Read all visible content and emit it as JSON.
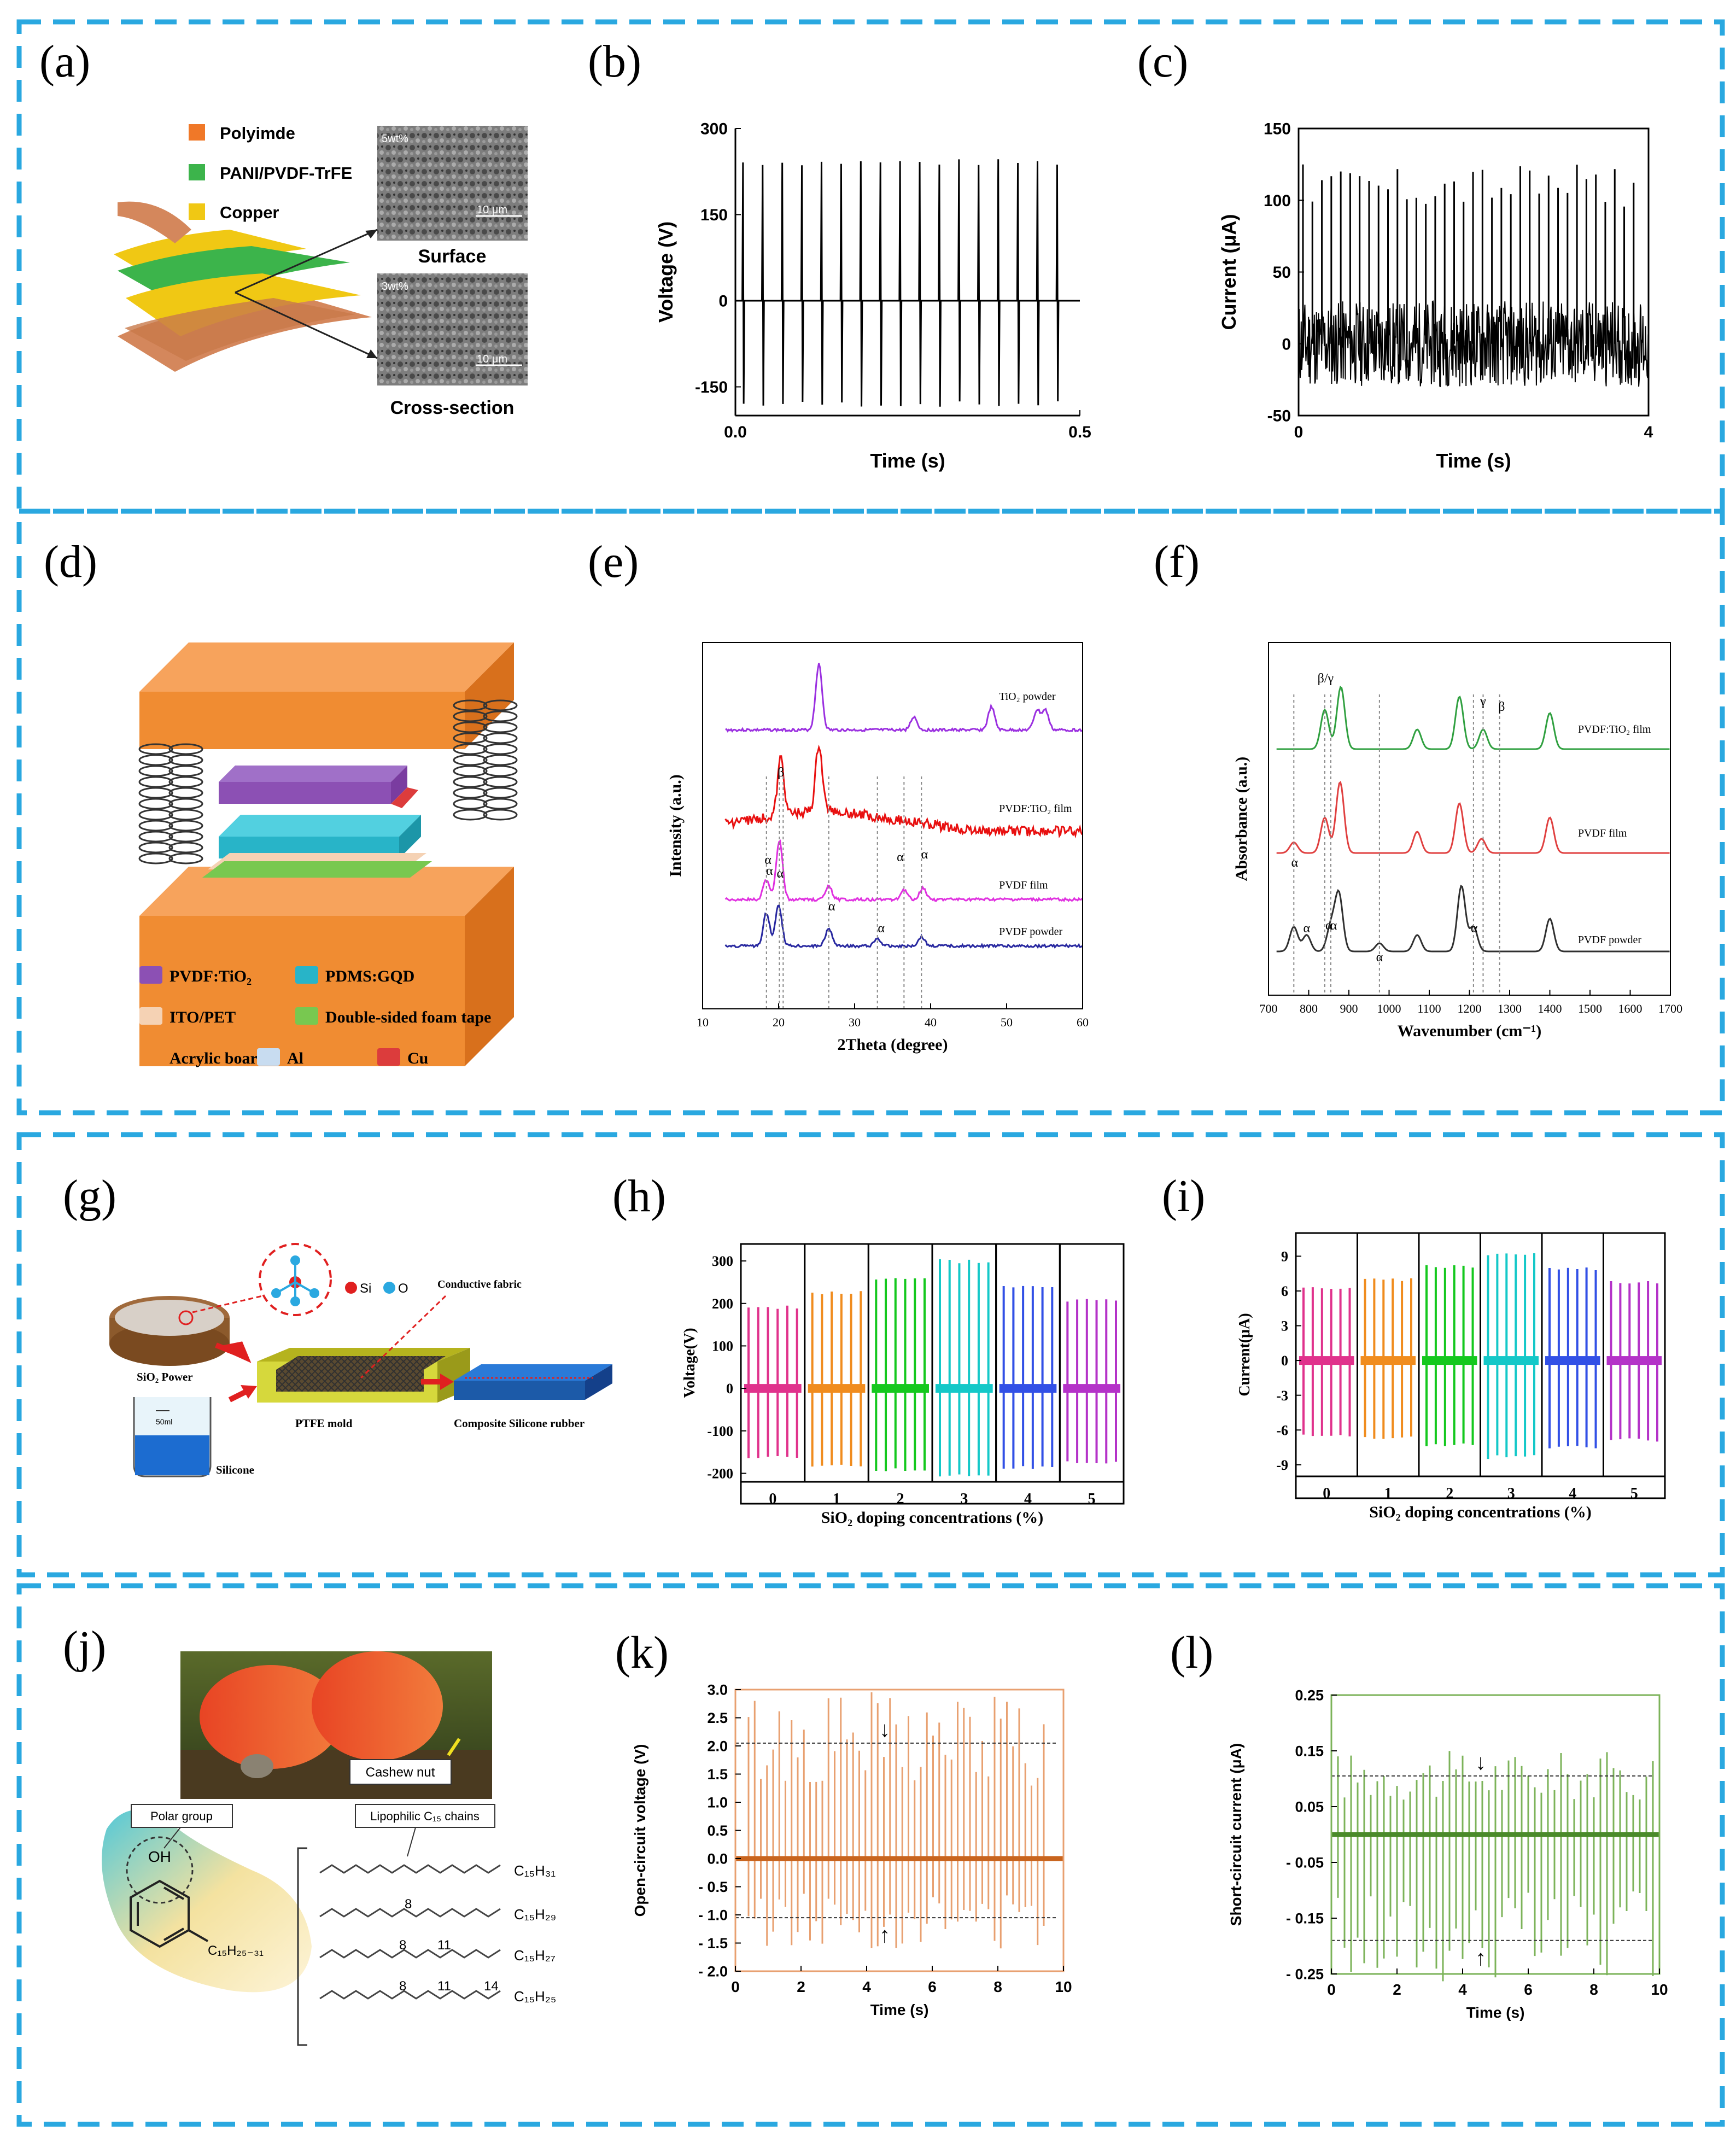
{
  "panel_letters": [
    "(a)",
    "(b)",
    "(c)",
    "(d)",
    "(e)",
    "(f)",
    "(g)",
    "(h)",
    "(i)",
    "(j)",
    "(k)",
    "(l)"
  ],
  "colors": {
    "frame": "#2aa8e0",
    "voltage": "#000000",
    "orange": "#e8a070",
    "orange_dark": "#c8641e",
    "green": "#7cb35a",
    "green_dark": "#4a8a2a",
    "lattice": [
      "#e0328c",
      "#f08c1e",
      "#14c81e",
      "#14c8c8",
      "#3250e6",
      "#b432c8"
    ]
  },
  "panel_a": {
    "legend": [
      "Polyimde",
      "PANI/PVDF-TrFE",
      "Copper"
    ],
    "legend_colors": [
      "#f07828",
      "#3cb44b",
      "#f0c814"
    ],
    "sem": [
      {
        "caption": "Surface",
        "scale": "10 μm",
        "tag": "5wt%"
      },
      {
        "caption": "Cross-section",
        "scale": "10 μm",
        "tag": "3wt%"
      }
    ],
    "icons": [
      "layered-film-icon",
      "sem-image-icon"
    ]
  },
  "panel_d": {
    "legend": [
      "PVDF:TiO₂",
      "PDMS:GQD",
      "ITO/PET",
      "Double-sided foam tape",
      "Acrylic board",
      "Al",
      "Cu"
    ],
    "legend_colors": [
      "#8c50b4",
      "#28b4c8",
      "#f5d2b4",
      "#78c850",
      "#f08c32",
      "#c8dcf0",
      "#dc3c3c"
    ],
    "icons": [
      "spring-icon",
      "device-stack-icon"
    ]
  },
  "panel_g": {
    "labels": {
      "sio2": "SiO₂ Power",
      "si": "Si",
      "o": "O",
      "silicone": "Silicone",
      "mold": "PTFE mold",
      "fabric": "Conductive fabric",
      "rubber": "Composite Silicone rubber",
      "beaker_mark": "50ml"
    },
    "icons": [
      "beaker-icon",
      "dish-icon",
      "molecule-icon",
      "arrow-icon"
    ]
  },
  "panel_j": {
    "caption": "Cashew nut",
    "polar": "Polar group",
    "lipo": "Lipophilic C₁₅ chains",
    "oh": "OH",
    "substituent": "C₁₅H₂₅₋₃₁",
    "chains": [
      "C₁₅H₃₁",
      "C₁₅H₂₉",
      "C₁₅H₂₇",
      "C₁₅H₂₅"
    ],
    "numbers": [
      "8",
      "8",
      "11",
      "8",
      "11",
      "14"
    ],
    "icons": [
      "photo-icon",
      "benzene-ring-icon"
    ]
  },
  "chart_data": [
    {
      "panel": "b",
      "type": "line",
      "xlabel": "Time (s)",
      "ylabel": "Voltage (V)",
      "xlim": [
        0,
        0.5
      ],
      "ylim": [
        -200,
        300
      ],
      "x_ticks": [
        "0.0",
        "0.5"
      ],
      "y_ticks": [
        "300",
        "150",
        "0",
        "-150"
      ],
      "series": [
        {
          "values": {
            "peak_count": 17,
            "positive_peak": 240,
            "negative_peak": -180,
            "baseline": 0
          }
        }
      ]
    },
    {
      "panel": "c",
      "type": "line",
      "xlabel": "Time (s)",
      "ylabel": "Current (μA)",
      "xlim": [
        0,
        4
      ],
      "ylim": [
        -50,
        150
      ],
      "x_ticks": [
        "0",
        "4"
      ],
      "y_ticks": [
        "150",
        "100",
        "50",
        "0",
        "-50"
      ],
      "series": [
        {
          "values": {
            "peak_count": 36,
            "positive_peak": 115,
            "noise_band": [
              -30,
              30
            ]
          }
        }
      ]
    },
    {
      "panel": "e",
      "type": "line",
      "xlabel": "2Theta (degree)",
      "ylabel": "Intensity (a.u.)",
      "xlim": [
        10,
        60
      ],
      "x_ticks": [
        "10",
        "20",
        "30",
        "40",
        "50",
        "60"
      ],
      "series": [
        {
          "name": "TiO₂ powder",
          "color": "#9b30e0",
          "peaks": [
            [
              25.3,
              1.0
            ],
            [
              37.8,
              0.2
            ],
            [
              48,
              0.35
            ],
            [
              54,
              0.3
            ],
            [
              55.1,
              0.3
            ]
          ]
        },
        {
          "name": "PVDF:TiO₂ film",
          "color": "#e81010",
          "peaks": [
            [
              20.3,
              0.7
            ],
            [
              25.3,
              0.8
            ]
          ]
        },
        {
          "name": "PVDF film",
          "color": "#e030e0",
          "peaks": [
            [
              18.4,
              0.3
            ],
            [
              20.1,
              0.9
            ],
            [
              26.6,
              0.2
            ],
            [
              36.5,
              0.15
            ],
            [
              39,
              0.18
            ]
          ]
        },
        {
          "name": "PVDF powder",
          "color": "#2828a0",
          "peaks": [
            [
              18.4,
              0.55
            ],
            [
              20,
              0.68
            ],
            [
              26.6,
              0.3
            ],
            [
              33,
              0.12
            ],
            [
              38.8,
              0.15
            ]
          ]
        }
      ],
      "annotations": [
        "β",
        "α",
        "α",
        "α",
        "α",
        "α",
        "α",
        "α"
      ],
      "dashed_x": [
        18.4,
        20.1,
        20.6,
        26.6,
        33,
        36.5,
        38.8
      ]
    },
    {
      "panel": "f",
      "type": "line",
      "xlabel": "Wavenumber (cm⁻¹)",
      "ylabel": "Absorbance (a.u.)",
      "xlim": [
        700,
        1700
      ],
      "x_ticks": [
        "700",
        "800",
        "900",
        "1000",
        "1100",
        "1200",
        "1300",
        "1400",
        "1500",
        "1600",
        "1700"
      ],
      "series": [
        {
          "name": "PVDF:TiO₂ film",
          "color": "#30a040",
          "peaks": [
            [
              840,
              0.6
            ],
            [
              880,
              0.95
            ],
            [
              1070,
              0.3
            ],
            [
              1175,
              0.8
            ],
            [
              1234,
              0.3
            ],
            [
              1400,
              0.55
            ]
          ]
        },
        {
          "name": "PVDF film",
          "color": "#e04040",
          "peaks": [
            [
              763,
              0.15
            ],
            [
              840,
              0.5
            ],
            [
              878,
              1.0
            ],
            [
              1070,
              0.3
            ],
            [
              1175,
              0.7
            ],
            [
              1230,
              0.2
            ],
            [
              1400,
              0.5
            ]
          ]
        },
        {
          "name": "PVDF powder",
          "color": "#303030",
          "peaks": [
            [
              763,
              0.3
            ],
            [
              795,
              0.2
            ],
            [
              855,
              0.3
            ],
            [
              875,
              0.7
            ],
            [
              976,
              0.1
            ],
            [
              1070,
              0.2
            ],
            [
              1180,
              0.8
            ],
            [
              1210,
              0.3
            ],
            [
              1400,
              0.4
            ]
          ]
        }
      ],
      "annotations": [
        "β/γ",
        "γ",
        "β",
        "α",
        "α",
        "α",
        "α",
        "α",
        "α"
      ],
      "dashed_x": [
        763,
        840,
        855,
        976,
        1210,
        1234,
        1275
      ]
    },
    {
      "panel": "h",
      "type": "line",
      "xlabel": "SiO₂ doping concentrations (%)",
      "ylabel": "Voltage(V)",
      "ylim": [
        -220,
        340
      ],
      "y_ticks": [
        "300",
        "200",
        "100",
        "0",
        "-100",
        "-200"
      ],
      "categories": [
        "0",
        "1",
        "2",
        "3",
        "4",
        "5"
      ],
      "series": [
        {
          "values": [
            {
              "concentration": 0,
              "max": 195,
              "min": -165
            },
            {
              "concentration": 1,
              "max": 230,
              "min": -185
            },
            {
              "concentration": 2,
              "max": 262,
              "min": -195
            },
            {
              "concentration": 3,
              "max": 305,
              "min": -210
            },
            {
              "concentration": 4,
              "max": 245,
              "min": -190
            },
            {
              "concentration": 5,
              "max": 212,
              "min": -178
            }
          ]
        }
      ]
    },
    {
      "panel": "i",
      "type": "line",
      "xlabel": "SiO₂ doping concentrations (%)",
      "ylabel": "Current(μA)",
      "ylim": [
        -10,
        11
      ],
      "y_ticks": [
        "9",
        "6",
        "3",
        "0",
        "-3",
        "-6",
        "-9"
      ],
      "categories": [
        "0",
        "1",
        "2",
        "3",
        "4",
        "5"
      ],
      "series": [
        {
          "values": [
            {
              "concentration": 0,
              "max": 6.4,
              "min": -6.6
            },
            {
              "concentration": 1,
              "max": 7.1,
              "min": -6.8
            },
            {
              "concentration": 2,
              "max": 8.3,
              "min": -7.4
            },
            {
              "concentration": 3,
              "max": 9.4,
              "min": -8.5
            },
            {
              "concentration": 4,
              "max": 8.1,
              "min": -7.6
            },
            {
              "concentration": 5,
              "max": 6.9,
              "min": -7
            }
          ]
        }
      ]
    },
    {
      "panel": "k",
      "type": "line",
      "xlabel": "Time (s)",
      "ylabel": "Open-circuit voltage (V)",
      "xlim": [
        0,
        10
      ],
      "ylim": [
        -2,
        3
      ],
      "x_ticks": [
        "0",
        "2",
        "4",
        "6",
        "8",
        "10"
      ],
      "y_ticks": [
        "3.0",
        "2.5",
        "2.0",
        "1.5",
        "1.0",
        "0.5",
        "0.0",
        "- 0.5",
        "- 1.0",
        "- 1.5",
        "- 2.0"
      ],
      "dashed_levels": [
        2.05,
        -1.05
      ],
      "series": [
        {
          "values": {
            "peak_count": 49,
            "positive_range": [
              1.2,
              3.0
            ],
            "negative_range": [
              -1.6,
              -0.6
            ]
          }
        }
      ]
    },
    {
      "panel": "l",
      "type": "line",
      "xlabel": "Time (s)",
      "ylabel": "Short-circuit current (μA)",
      "xlim": [
        0,
        10
      ],
      "ylim": [
        -0.25,
        0.25
      ],
      "x_ticks": [
        "0",
        "2",
        "4",
        "6",
        "8",
        "10"
      ],
      "y_ticks": [
        "0.25",
        "0.15",
        "0.05",
        "- 0.05",
        "- 0.15",
        "- 0.25"
      ],
      "dashed_levels": [
        0.105,
        -0.19
      ],
      "series": [
        {
          "values": {
            "peak_count": 49,
            "positive_range": [
              0.06,
              0.15
            ],
            "negative_range": [
              -0.27,
              -0.1
            ]
          }
        }
      ]
    }
  ]
}
